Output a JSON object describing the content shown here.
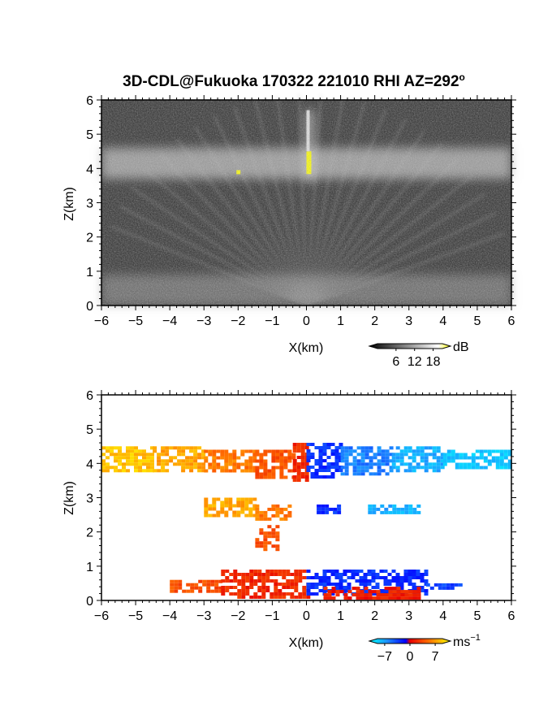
{
  "title": "3D-CDL@Fukuoka 170322 221010 RHI AZ=292",
  "title_degree_mark": "o",
  "chart_data": [
    {
      "type": "heatmap",
      "panel": "top",
      "variable": "backscatter intensity (grayscale)",
      "xlabel": "X(km)",
      "ylabel": "Z(km)",
      "xlim": [
        -6,
        6
      ],
      "ylim": [
        0,
        6
      ],
      "xticks": [
        -6,
        -5,
        -4,
        -3,
        -2,
        -1,
        0,
        1,
        2,
        3,
        4,
        5,
        6
      ],
      "yticks": [
        0,
        1,
        2,
        3,
        4,
        5,
        6
      ],
      "colorbar": {
        "unit": "dB",
        "ticks": [
          6,
          12,
          18
        ],
        "range": [
          0,
          21
        ]
      },
      "features": [
        {
          "label": "bright cloud layer",
          "x": [
            -6,
            6
          ],
          "z": [
            3.7,
            4.6
          ],
          "value_db": 14
        },
        {
          "label": "near-surface bright band",
          "x": [
            -6,
            6
          ],
          "z": [
            0.0,
            0.9
          ],
          "value_db": 11
        },
        {
          "label": "vertical streak at radar",
          "x": [
            0.0,
            0.2
          ],
          "z": [
            3.6,
            5.7
          ],
          "value_db": 18
        }
      ]
    },
    {
      "type": "heatmap",
      "panel": "bottom",
      "variable": "radial velocity",
      "xlabel": "X(km)",
      "ylabel": "Z(km)",
      "xlim": [
        -6,
        6
      ],
      "ylim": [
        0,
        6
      ],
      "xticks": [
        -6,
        -5,
        -4,
        -3,
        -2,
        -1,
        0,
        1,
        2,
        3,
        4,
        5,
        6
      ],
      "yticks": [
        0,
        1,
        2,
        3,
        4,
        5,
        6
      ],
      "colorbar": {
        "unit": "ms",
        "unit_superscript": "−1",
        "ticks": [
          -7,
          0,
          7
        ],
        "range": [
          -9,
          9
        ]
      },
      "regions": [
        {
          "x": [
            -6.0,
            -4.5
          ],
          "z": [
            3.8,
            4.5
          ],
          "v": 7
        },
        {
          "x": [
            -4.5,
            -3.0
          ],
          "z": [
            3.8,
            4.5
          ],
          "v": 6
        },
        {
          "x": [
            -3.0,
            -1.5
          ],
          "z": [
            3.8,
            4.4
          ],
          "v": 4.5
        },
        {
          "x": [
            -1.5,
            -0.4
          ],
          "z": [
            3.6,
            4.4
          ],
          "v": 3
        },
        {
          "x": [
            -0.4,
            0.0
          ],
          "z": [
            3.5,
            4.6
          ],
          "v": 1.5
        },
        {
          "x": [
            0.0,
            1.0
          ],
          "z": [
            3.6,
            4.6
          ],
          "v": -2
        },
        {
          "x": [
            1.0,
            2.5
          ],
          "z": [
            3.7,
            4.5
          ],
          "v": -4.5
        },
        {
          "x": [
            2.5,
            4.0
          ],
          "z": [
            3.8,
            4.5
          ],
          "v": -6
        },
        {
          "x": [
            4.0,
            6.0
          ],
          "z": [
            3.9,
            4.4
          ],
          "v": -7
        },
        {
          "x": [
            -3.0,
            -1.5
          ],
          "z": [
            2.5,
            3.0
          ],
          "v": 6
        },
        {
          "x": [
            -1.5,
            -0.5
          ],
          "z": [
            2.4,
            2.8
          ],
          "v": 4.5
        },
        {
          "x": [
            0.3,
            0.9
          ],
          "z": [
            2.6,
            2.8
          ],
          "v": -2
        },
        {
          "x": [
            1.8,
            3.3
          ],
          "z": [
            2.6,
            2.8
          ],
          "v": -6
        },
        {
          "x": [
            -1.5,
            -0.8
          ],
          "z": [
            1.5,
            2.2
          ],
          "v": 3
        },
        {
          "x": [
            -4.0,
            -2.5
          ],
          "z": [
            0.3,
            0.6
          ],
          "v": 3
        },
        {
          "x": [
            -2.5,
            0.0
          ],
          "z": [
            0.1,
            0.9
          ],
          "v": 1.5
        },
        {
          "x": [
            0.0,
            3.5
          ],
          "z": [
            0.2,
            0.9
          ],
          "v": -2
        },
        {
          "x": [
            0.5,
            3.3
          ],
          "z": [
            0.1,
            0.4
          ],
          "v": 1
        },
        {
          "x": [
            3.5,
            4.5
          ],
          "z": [
            0.4,
            0.5
          ],
          "v": -2.5
        }
      ]
    }
  ],
  "colors": {
    "frame": "#000000",
    "gray_background": "#2e2e2e",
    "highlight_yellow": "#ffff00"
  }
}
